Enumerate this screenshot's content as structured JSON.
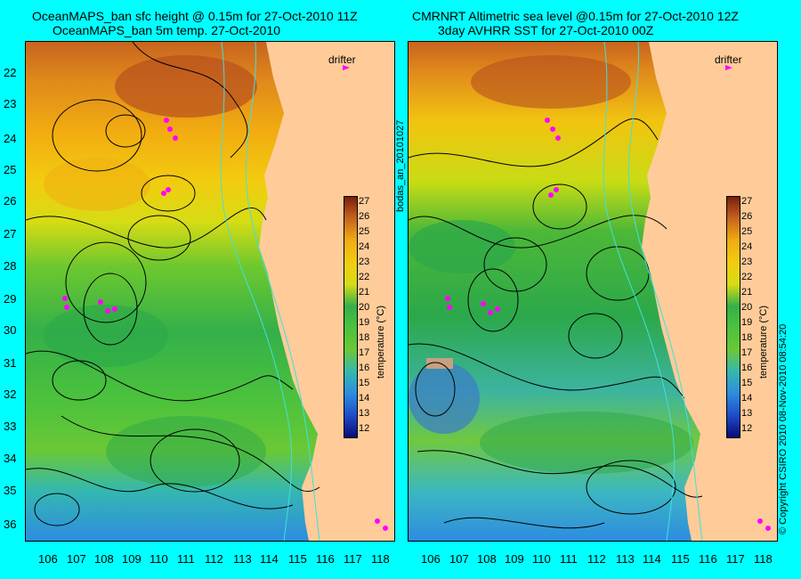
{
  "left_panel": {
    "title_line1": "OceanMAPS_ban sfc height @ 0.15m for 27-Oct-2010 11Z",
    "title_line2": "OceanMAPS_ban 5m temp. 27-Oct-2010",
    "drifter_label": "drifter",
    "colorbar_label": "temperature (°C)"
  },
  "right_panel": {
    "title_line1": "CMRNRT Altimetric sea level  @0.15m  for 27-Oct-2010 12Z",
    "title_line2": "3day AVHRR SST for 27-Oct-2010 00Z",
    "drifter_label": "drifter",
    "colorbar_label": "temperature (°C)"
  },
  "side_label": "bodas_an_20101027",
  "copyright": "© Copyright CSIRO 2010   08-Nov-2010 08:54:20",
  "y_ticks": [
    "22",
    "23",
    "24",
    "25",
    "26",
    "27",
    "28",
    "29",
    "30",
    "31",
    "32",
    "33",
    "34",
    "35",
    "36"
  ],
  "x_ticks": [
    "106",
    "107",
    "108",
    "109",
    "110",
    "111",
    "112",
    "113",
    "114",
    "115",
    "116",
    "117",
    "118"
  ],
  "colorbar_ticks": [
    "27",
    "26",
    "25",
    "24",
    "23",
    "22",
    "21",
    "20",
    "19",
    "18",
    "17",
    "16",
    "15",
    "14",
    "13",
    "12"
  ],
  "colors": {
    "background": "#00FFFF",
    "land": "#FFCC99",
    "drifter": "#FF00FF"
  }
}
